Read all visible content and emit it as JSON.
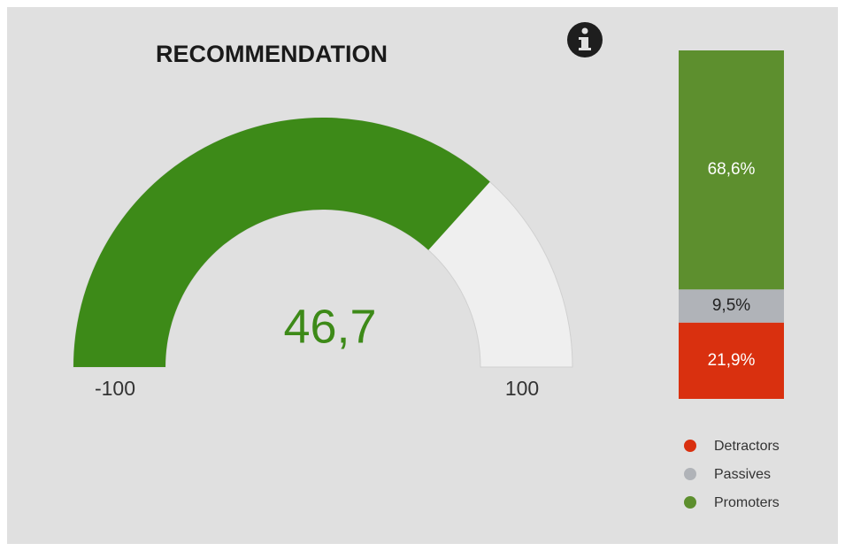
{
  "chart_data": [
    {
      "type": "gauge",
      "title": "RECOMMENDATION",
      "values": [
        46.7
      ],
      "value_labels": [
        "46,7"
      ],
      "color": "#3d8a18",
      "ylim": [
        -100,
        100
      ],
      "yticks": [
        -100,
        100
      ]
    },
    {
      "type": "bar",
      "stacked": true,
      "series": [
        {
          "name": "Detractors",
          "color": "#d9300f",
          "values": [
            21.9
          ],
          "value_labels": [
            "21,9%"
          ]
        },
        {
          "name": "Passives",
          "color": "#b0b3b8",
          "values": [
            9.5
          ],
          "value_labels": [
            "9,5%"
          ]
        },
        {
          "name": "Promoters",
          "color": "#5d8f2e",
          "values": [
            68.6
          ],
          "value_labels": [
            "68,6%"
          ]
        }
      ],
      "ylim": [
        0,
        100
      ]
    }
  ]
}
